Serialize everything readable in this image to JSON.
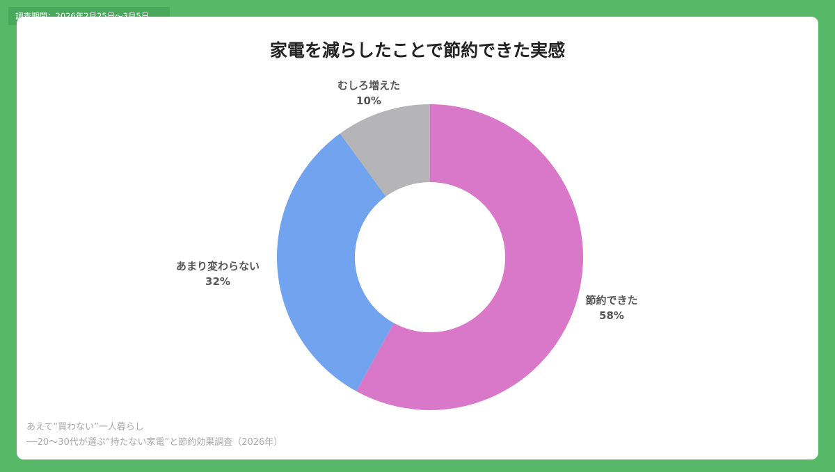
{
  "header": {
    "period": "調査期間：2026年2月25日〜3月5日"
  },
  "chart_data": {
    "type": "pie",
    "donut": true,
    "title": "家電を減らしたことで節約できた実感",
    "categories": [
      "節約できた",
      "あまり変わらない",
      "むしろ増えた"
    ],
    "values": [
      58,
      32,
      10
    ],
    "unit": "%",
    "value_labels": [
      "58%",
      "32%",
      "10%"
    ],
    "colors": [
      "#d977c8",
      "#72a3ee",
      "#b5b4b6"
    ],
    "legend": "none"
  },
  "footer": {
    "source_line1": "あえて“買わない”一人暮らし",
    "source_line2": "──20〜30代が選ぶ“持たない家電”と節約効果調査（2026年）"
  },
  "theme": {
    "frame": "#57b868",
    "card": "#ffffff"
  }
}
